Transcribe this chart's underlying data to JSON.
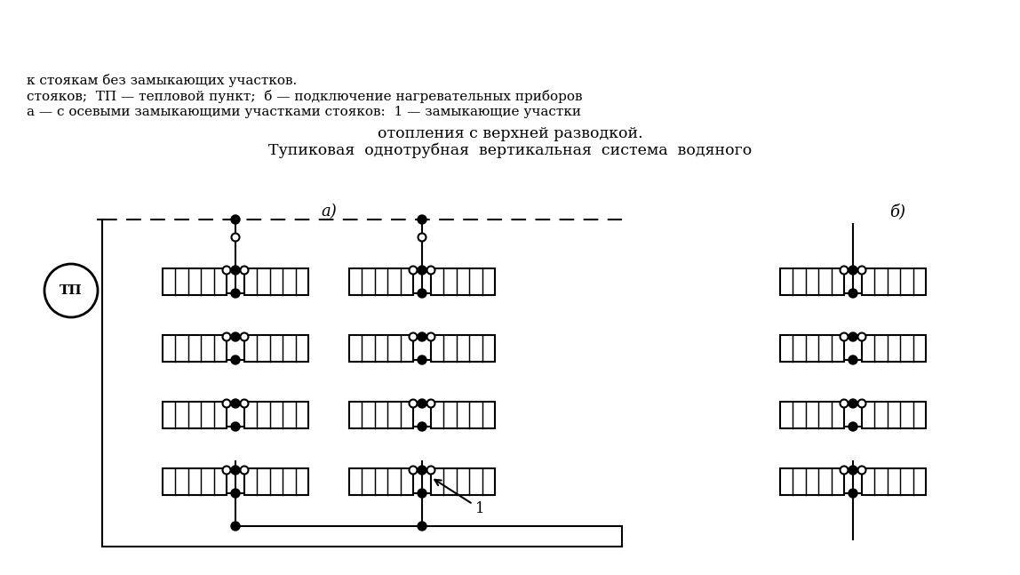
{
  "bg_color": "#ffffff",
  "line_color": "#000000",
  "title_main": "Тупиковая  однотрубная  вертикальная  система  водяного",
  "title_line2": "отопления с верхней разводкой.",
  "caption": "а — с осевыми замыкающими участками стояков:  1 — замыкающие участки\nстояков;  ТП — тепловой пункт;  б — подключение нагревательных приборов\nк стоякам без замыкающих участков.",
  "label_a": "а)",
  "label_b": "б)",
  "label_1": "1",
  "label_TP": "ТП"
}
